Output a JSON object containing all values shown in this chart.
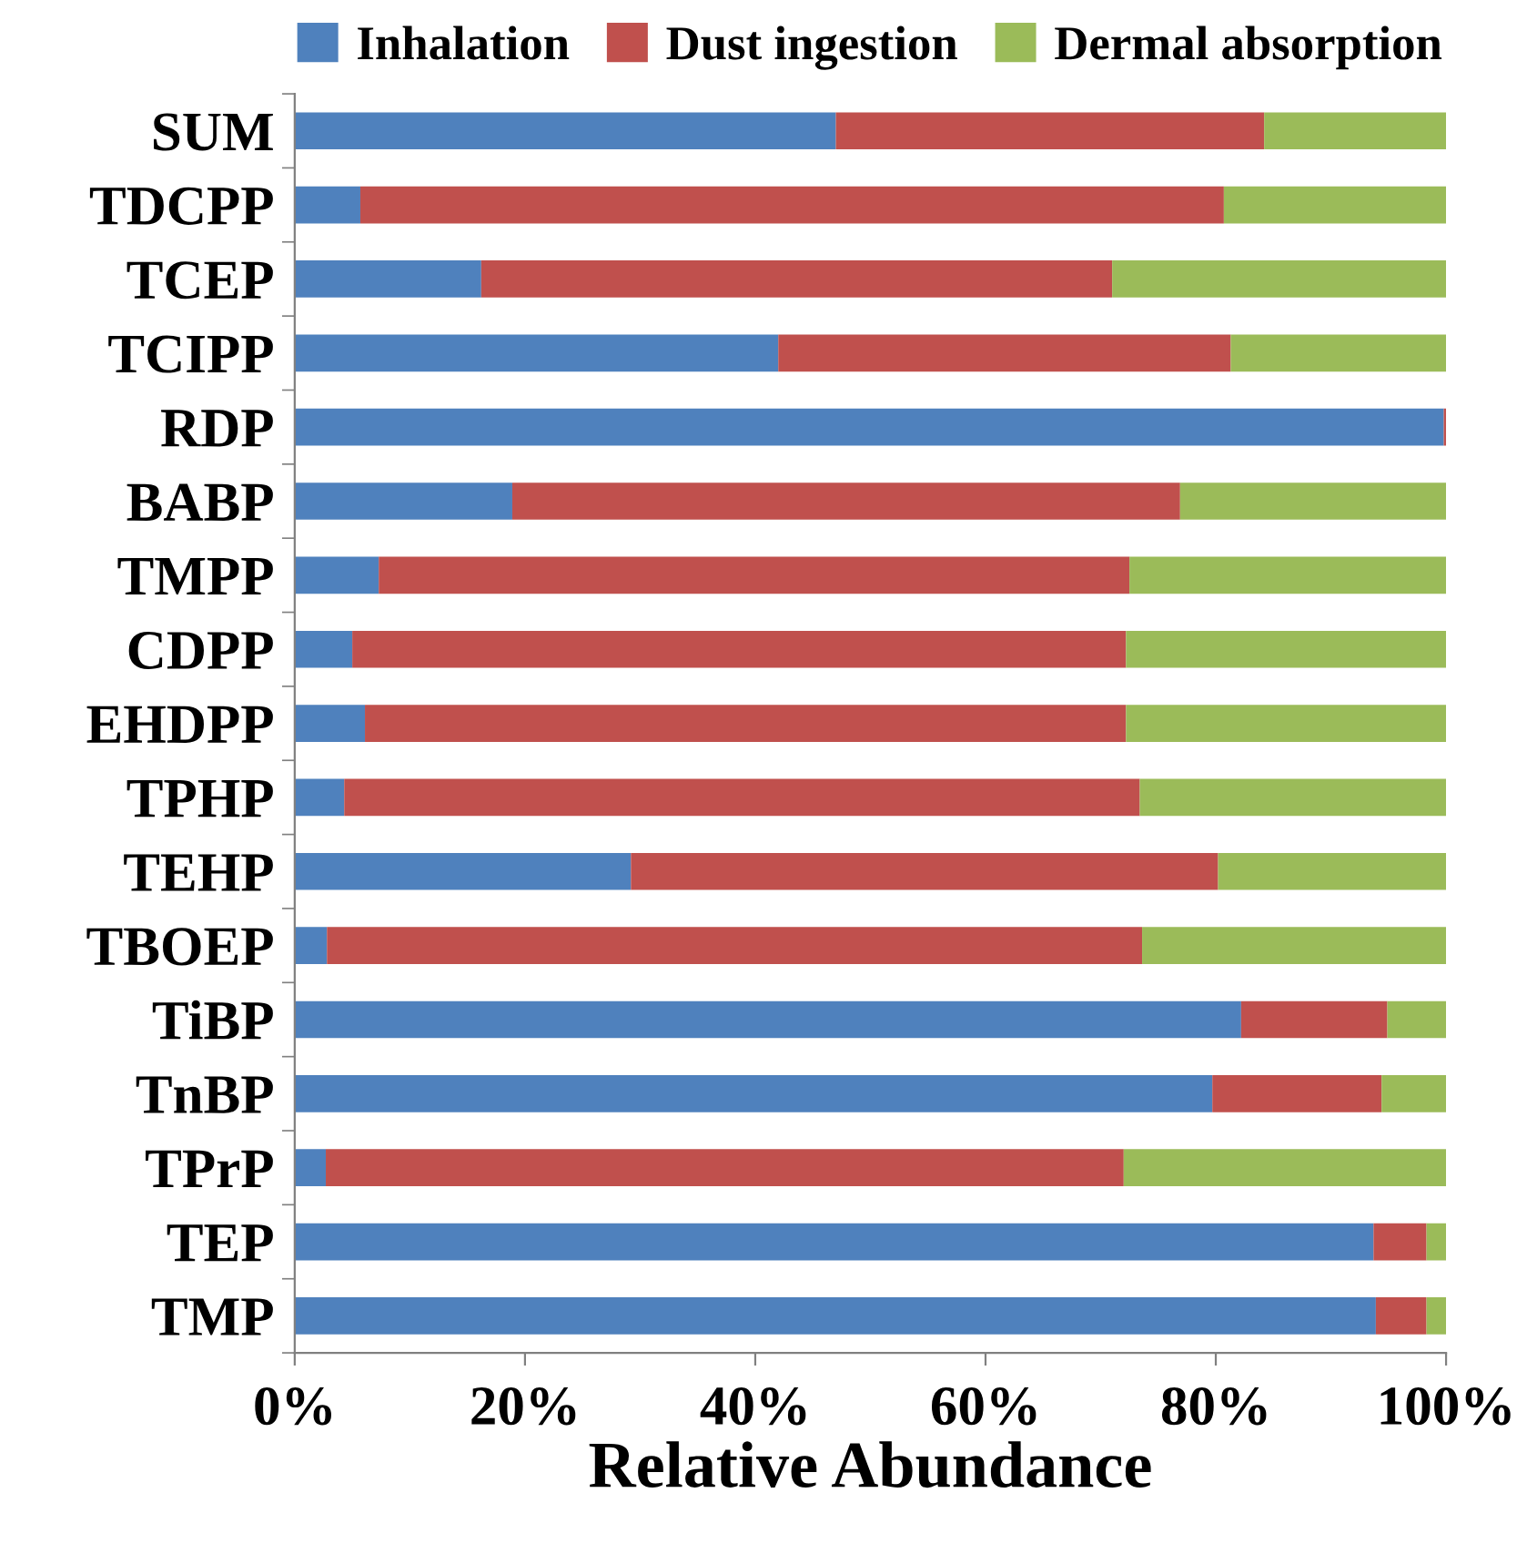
{
  "chart_data": {
    "type": "bar",
    "orientation": "horizontal",
    "stacked": true,
    "xlabel": "Relative Abundance",
    "legend": "top",
    "grid": false,
    "categories": [
      "SUM",
      "TDCPP",
      "TCEP",
      "TCIPP",
      "RDP",
      "BABP",
      "TMPP",
      "CDPP",
      "EHDPP",
      "TPHP",
      "TEHP",
      "TBOEP",
      "TiBP",
      "TnBP",
      "TPrP",
      "TEP",
      "TMP"
    ],
    "xlim": [
      0,
      100
    ],
    "xticks": [
      {
        "value": 0,
        "label": "0%"
      },
      {
        "value": 20,
        "label": "20%"
      },
      {
        "value": 40,
        "label": "40%"
      },
      {
        "value": 60,
        "label": "60%"
      },
      {
        "value": 80,
        "label": "80%"
      },
      {
        "value": 100,
        "label": "100%"
      }
    ],
    "series": [
      {
        "name": "Inhalation",
        "color": "#4f81bd",
        "values": [
          47.0,
          5.7,
          16.2,
          42.0,
          99.8,
          18.9,
          7.3,
          5.0,
          6.1,
          4.3,
          29.2,
          2.8,
          82.2,
          79.7,
          2.7,
          93.7,
          93.9
        ]
      },
      {
        "name": "Dust ingestion",
        "color": "#c0504d",
        "values": [
          37.2,
          75.0,
          54.8,
          39.3,
          0.2,
          58.0,
          65.2,
          67.2,
          66.1,
          69.1,
          51.0,
          70.8,
          12.7,
          14.7,
          69.3,
          4.6,
          4.4
        ]
      },
      {
        "name": "Dermal absorption",
        "color": "#9bbb59",
        "values": [
          15.8,
          19.3,
          29.0,
          18.7,
          0,
          23.1,
          27.5,
          27.8,
          27.8,
          26.6,
          19.8,
          26.4,
          5.1,
          5.6,
          28.0,
          1.7,
          1.7
        ]
      }
    ]
  }
}
